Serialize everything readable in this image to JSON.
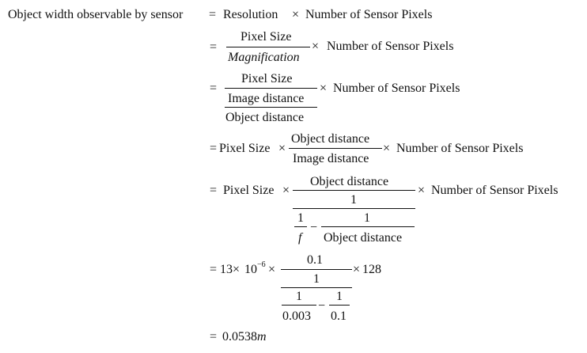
{
  "l1": {
    "lhs": "Object width observable by sensor",
    "eq": "=",
    "resolution": "Resolution",
    "times": "×",
    "nsp": "Number of Sensor Pixels"
  },
  "l2": {
    "eq": "=",
    "num": "Pixel Size",
    "den": "Magnification",
    "times": "×",
    "nsp": "Number of Sensor Pixels"
  },
  "l3": {
    "eq": "=",
    "num": "Pixel Size",
    "den_num": "Image distance",
    "den_den": "Object distance",
    "times": "×",
    "nsp": "Number of Sensor Pixels"
  },
  "l4": {
    "eq": "=",
    "pixel_size": "Pixel Size",
    "times1": "×",
    "num": "Object distance",
    "den": "Image distance",
    "times2": "×",
    "nsp": "Number of Sensor Pixels"
  },
  "l5": {
    "eq": "=",
    "pixel_size": "Pixel Size",
    "times1": "×",
    "num": "Object distance",
    "one_top": "1",
    "one_a": "1",
    "f": "f",
    "minus": "−",
    "one_b": "1",
    "obj_dist": "Object distance",
    "times2": "×",
    "nsp": "Number of Sensor Pixels"
  },
  "l6": {
    "eq": "=",
    "coef": "13",
    "times1": "×",
    "ten": "10",
    "exp": "−6",
    "times2": "×",
    "num": "0.1",
    "one_top": "1",
    "one_a": "1",
    "den_a": "0.003",
    "minus": "−",
    "one_b": "1",
    "den_b": "0.1",
    "times3": "×",
    "count": "128"
  },
  "l7": {
    "eq": "=",
    "value": "0.0538",
    "unit": "m"
  }
}
